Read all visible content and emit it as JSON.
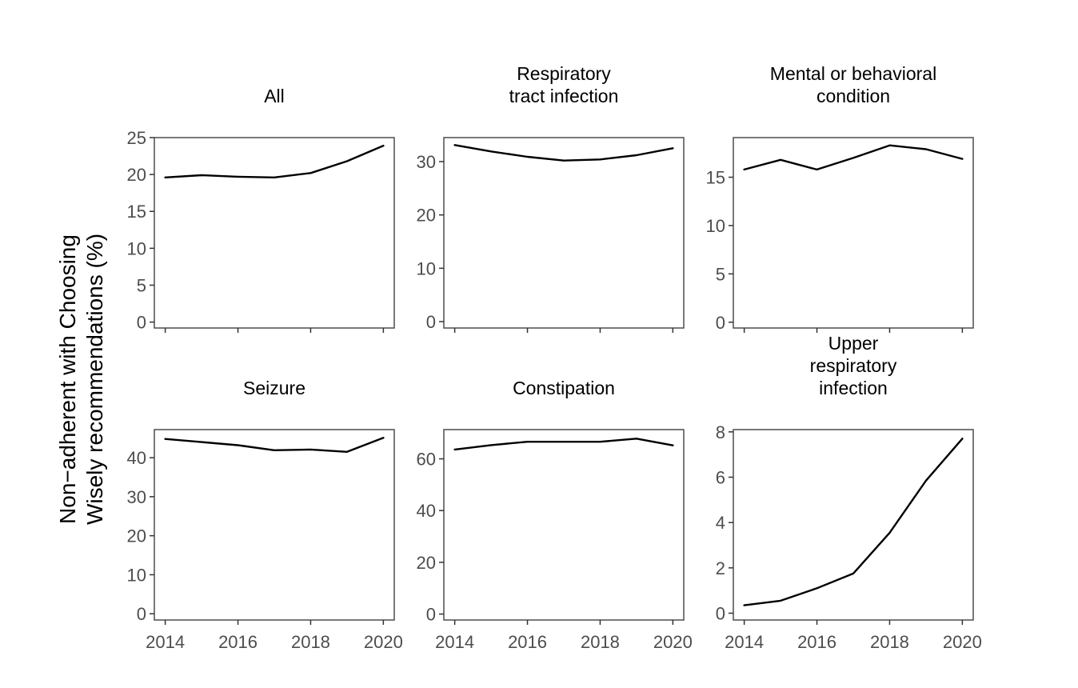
{
  "y_axis_title": [
    "Non−adherent with Choosing",
    "Wisely recommendations (%)"
  ],
  "chart_data": [
    {
      "type": "line",
      "title": [
        "All"
      ],
      "x": [
        2014,
        2015,
        2016,
        2017,
        2018,
        2019,
        2020
      ],
      "values": [
        19.6,
        19.9,
        19.7,
        19.6,
        20.2,
        21.8,
        23.9
      ],
      "xlim": [
        2013.7,
        2020.3
      ],
      "ylim": [
        -0.8,
        25
      ],
      "yticks": [
        0,
        5,
        10,
        15,
        20,
        25
      ],
      "xticks": [
        2014,
        2016,
        2018,
        2020
      ],
      "show_x_tick_labels": false
    },
    {
      "type": "line",
      "title": [
        "Respiratory",
        "tract infection"
      ],
      "x": [
        2014,
        2015,
        2016,
        2017,
        2018,
        2019,
        2020
      ],
      "values": [
        33.1,
        31.9,
        30.9,
        30.2,
        30.4,
        31.2,
        32.5
      ],
      "xlim": [
        2013.7,
        2020.3
      ],
      "ylim": [
        -1.2,
        34.5
      ],
      "yticks": [
        0,
        10,
        20,
        30
      ],
      "xticks": [
        2014,
        2016,
        2018,
        2020
      ],
      "show_x_tick_labels": false
    },
    {
      "type": "line",
      "title": [
        "Mental or behavioral",
        "condition"
      ],
      "x": [
        2014,
        2015,
        2016,
        2017,
        2018,
        2019,
        2020
      ],
      "values": [
        15.8,
        16.8,
        15.8,
        17.0,
        18.3,
        17.9,
        16.9
      ],
      "xlim": [
        2013.7,
        2020.3
      ],
      "ylim": [
        -0.6,
        19.1
      ],
      "yticks": [
        0,
        5,
        10,
        15
      ],
      "xticks": [
        2014,
        2016,
        2018,
        2020
      ],
      "show_x_tick_labels": false
    },
    {
      "type": "line",
      "title": [
        "Seizure"
      ],
      "x": [
        2014,
        2015,
        2016,
        2017,
        2018,
        2019,
        2020
      ],
      "values": [
        44.8,
        44.0,
        43.2,
        41.9,
        42.1,
        41.5,
        45.1
      ],
      "xlim": [
        2013.7,
        2020.3
      ],
      "ylim": [
        -1.6,
        47.2
      ],
      "yticks": [
        0,
        10,
        20,
        30,
        40
      ],
      "xticks": [
        2014,
        2016,
        2018,
        2020
      ],
      "show_x_tick_labels": true
    },
    {
      "type": "line",
      "title": [
        "Constipation"
      ],
      "x": [
        2014,
        2015,
        2016,
        2017,
        2018,
        2019,
        2020
      ],
      "values": [
        63.6,
        65.3,
        66.6,
        66.6,
        66.6,
        67.8,
        65.2
      ],
      "xlim": [
        2013.7,
        2020.3
      ],
      "ylim": [
        -2.3,
        71.3
      ],
      "yticks": [
        0,
        20,
        40,
        60
      ],
      "xticks": [
        2014,
        2016,
        2018,
        2020
      ],
      "show_x_tick_labels": true
    },
    {
      "type": "line",
      "title": [
        "Upper",
        "respiratory",
        "infection"
      ],
      "x": [
        2014,
        2015,
        2016,
        2017,
        2018,
        2019,
        2020
      ],
      "values": [
        0.35,
        0.55,
        1.1,
        1.75,
        3.55,
        5.85,
        7.7
      ],
      "xlim": [
        2013.7,
        2020.3
      ],
      "ylim": [
        -0.3,
        8.1
      ],
      "yticks": [
        0,
        2,
        4,
        6,
        8
      ],
      "xticks": [
        2014,
        2016,
        2018,
        2020
      ],
      "show_x_tick_labels": true
    }
  ]
}
